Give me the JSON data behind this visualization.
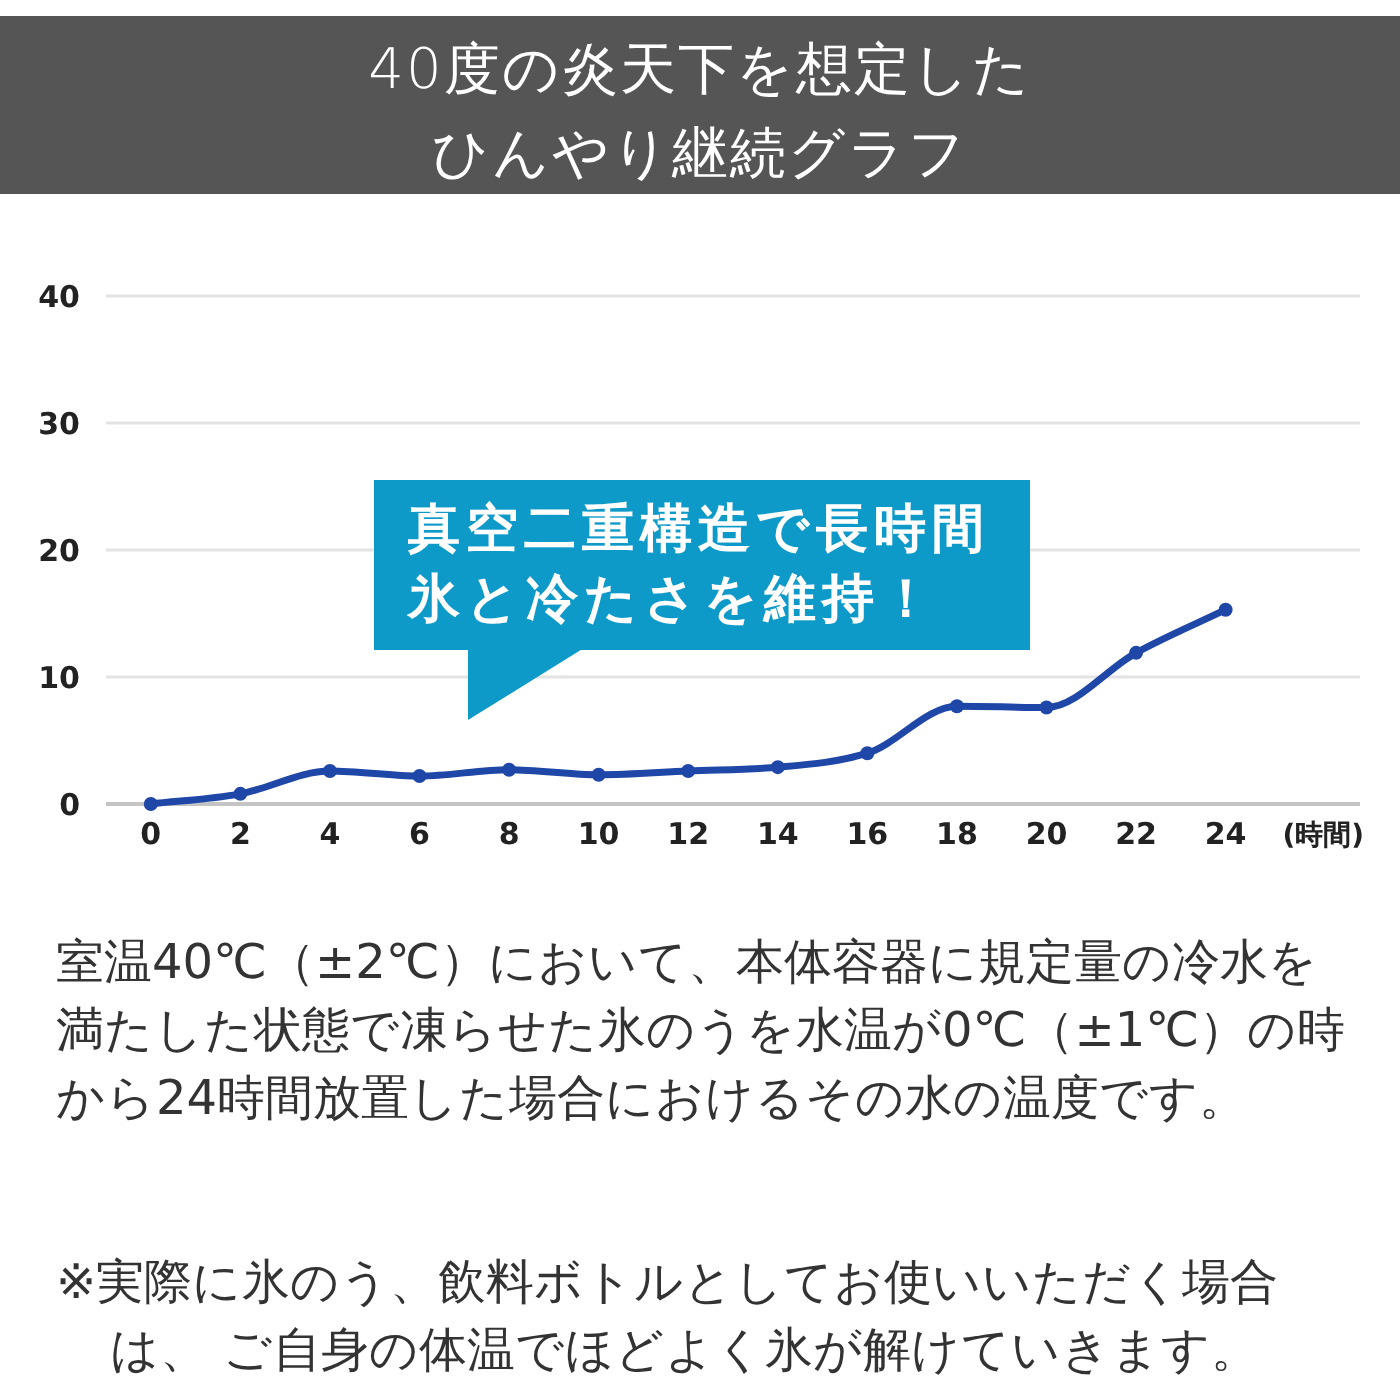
{
  "chart_data": {
    "type": "line",
    "title": "40度の炎天下を想定したひんやり継続グラフ",
    "xlabel": "(時間)",
    "x": [
      0,
      2,
      4,
      6,
      8,
      10,
      12,
      14,
      16,
      18,
      20,
      22,
      24
    ],
    "series": [
      {
        "color": "#1f47a8",
        "values": [
          0,
          0.8,
          2.6,
          2.2,
          2.7,
          2.3,
          2.6,
          2.9,
          4.0,
          7.7,
          7.6,
          11.9,
          15.3
        ]
      }
    ],
    "xlim": [
      -1,
      27
    ],
    "xticks": [
      0,
      2,
      4,
      6,
      8,
      10,
      12,
      14,
      16,
      18,
      20,
      22,
      24
    ],
    "ylim": [
      0,
      40
    ],
    "yticks": [
      0,
      10,
      20,
      30,
      40
    ],
    "grid": "y",
    "marker": "circle",
    "line_style": "solid",
    "annotations": [
      "真空二重構造で長時間氷と冷たさを維持！",
      "室温40℃（±2℃）において、本体容器に規定量の冷水を満たした状態で凍らせた氷のうを水温が0℃（±1℃）の時から24時間放置した場合におけるその水の温度です。",
      "※実際に氷のう、飲料ボトルとしてお使いいただく場合は、 ご自身の体温でほどよく氷が解けていきます。"
    ]
  }
}
